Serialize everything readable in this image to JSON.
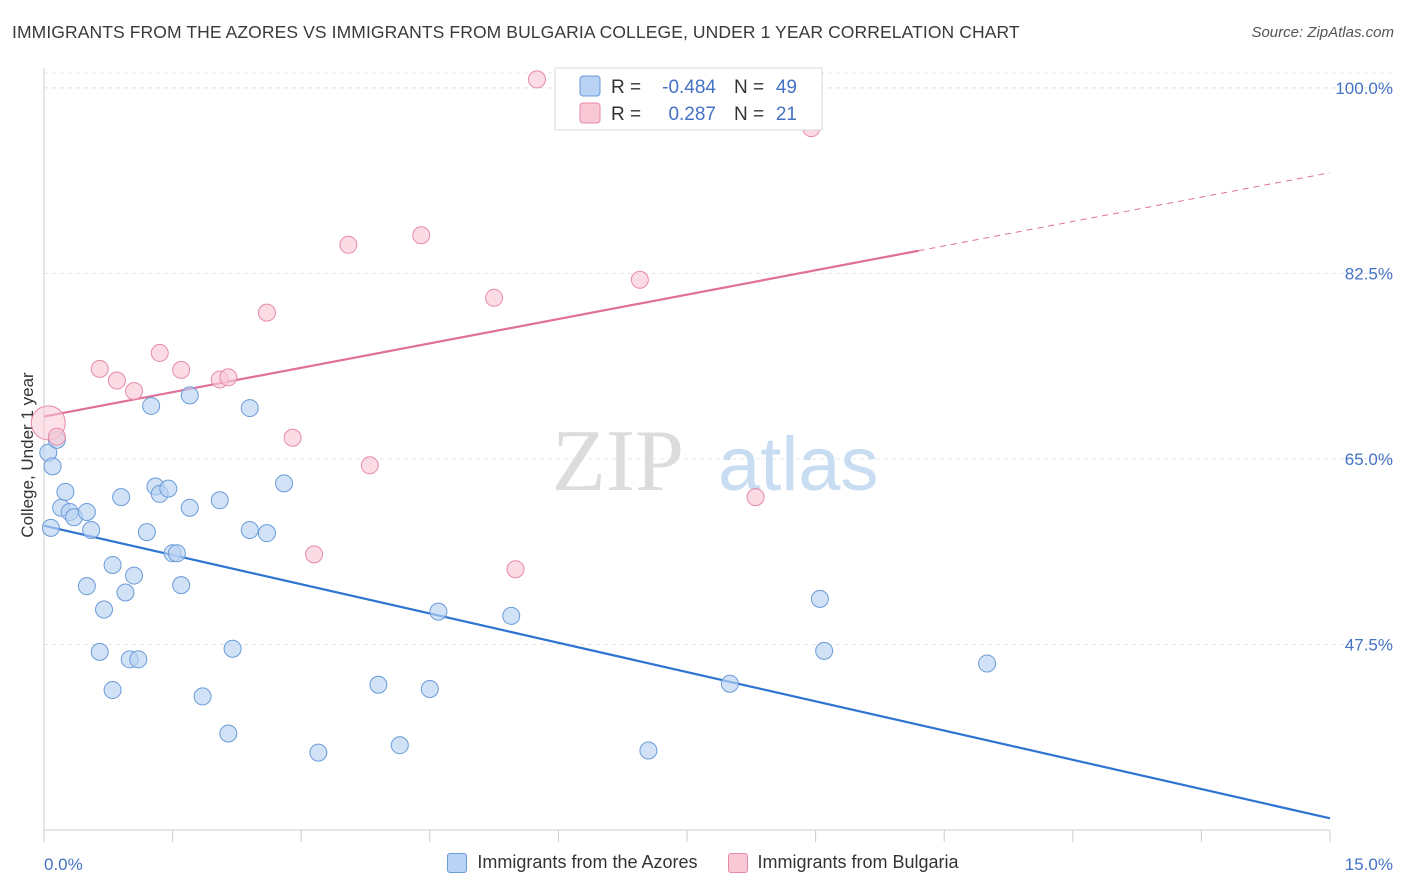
{
  "header": {
    "title": "IMMIGRANTS FROM THE AZORES VS IMMIGRANTS FROM BULGARIA COLLEGE, UNDER 1 YEAR CORRELATION CHART",
    "source": "Source: ZipAtlas.com"
  },
  "watermark": {
    "zip": "ZIP",
    "atlas": "atlas"
  },
  "stats": {
    "r_label": "R =",
    "n_label": "N =",
    "azores": {
      "r": "-0.484",
      "n": "49"
    },
    "bulgaria": {
      "r": "0.287",
      "n": "21"
    }
  },
  "colors": {
    "azores_fill": "#b8d3f3",
    "azores_stroke": "#6a9bd8",
    "azores_line": "#2e74d2",
    "bulgaria_fill": "#f9c8d6",
    "bulgaria_stroke": "#e68aa6",
    "bulgaria_line": "#e0709a",
    "axis_text": "#4472c4"
  },
  "chart_data": {
    "type": "scatter",
    "title": "IMMIGRANTS FROM THE AZORES VS IMMIGRANTS FROM BULGARIA COLLEGE, UNDER 1 YEAR CORRELATION CHART",
    "xlabel": "",
    "ylabel": "College, Under 1 year",
    "xlim": [
      0,
      15
    ],
    "ylim": [
      30,
      101.5
    ],
    "x_tick_labels": [
      "0.0%",
      "15.0%"
    ],
    "y_ticks": [
      47.5,
      65.0,
      82.5,
      100.0
    ],
    "y_tick_labels": [
      "47.5%",
      "65.0%",
      "82.5%",
      "100.0%"
    ],
    "grid": true,
    "legend_position": "bottom-center",
    "series": [
      {
        "name": "Immigrants from the Azores",
        "r": -0.484,
        "n": 49,
        "trend": {
          "x": [
            0,
            15
          ],
          "y": [
            58.7,
            31.1
          ],
          "solid_to": 15
        },
        "points": [
          [
            0.05,
            65.6
          ],
          [
            0.1,
            64.3
          ],
          [
            0.15,
            66.8
          ],
          [
            0.2,
            60.4
          ],
          [
            0.25,
            61.9
          ],
          [
            0.3,
            60.0
          ],
          [
            0.35,
            59.5
          ],
          [
            0.5,
            60.0
          ],
          [
            0.55,
            58.3
          ],
          [
            0.5,
            53.0
          ],
          [
            0.7,
            50.8
          ],
          [
            0.65,
            46.8
          ],
          [
            0.8,
            55.0
          ],
          [
            0.9,
            61.4
          ],
          [
            0.95,
            52.4
          ],
          [
            1.0,
            46.1
          ],
          [
            1.1,
            46.1
          ],
          [
            1.05,
            54.0
          ],
          [
            1.2,
            58.1
          ],
          [
            1.25,
            70.0
          ],
          [
            1.3,
            62.4
          ],
          [
            1.35,
            61.7
          ],
          [
            1.45,
            62.2
          ],
          [
            1.5,
            56.1
          ],
          [
            1.55,
            56.1
          ],
          [
            1.6,
            53.1
          ],
          [
            1.7,
            60.4
          ],
          [
            1.7,
            71.0
          ],
          [
            0.8,
            43.2
          ],
          [
            1.85,
            42.6
          ],
          [
            2.05,
            61.1
          ],
          [
            2.15,
            39.1
          ],
          [
            2.2,
            47.1
          ],
          [
            2.4,
            58.3
          ],
          [
            2.4,
            69.8
          ],
          [
            2.6,
            58.0
          ],
          [
            2.8,
            62.7
          ],
          [
            3.2,
            37.3
          ],
          [
            3.9,
            43.7
          ],
          [
            4.15,
            38.0
          ],
          [
            4.5,
            43.3
          ],
          [
            4.6,
            50.6
          ],
          [
            5.45,
            50.2
          ],
          [
            7.05,
            37.5
          ],
          [
            8.0,
            43.8
          ],
          [
            9.05,
            51.8
          ],
          [
            9.1,
            46.9
          ],
          [
            11.0,
            45.7
          ],
          [
            0.08,
            58.5
          ]
        ]
      },
      {
        "name": "Immigrants from Bulgaria",
        "r": 0.287,
        "n": 21,
        "trend": {
          "x": [
            0,
            15
          ],
          "y": [
            69.0,
            92.0
          ],
          "solid_to": 10.2
        },
        "points": [
          [
            0.05,
            68.4
          ],
          [
            0.15,
            67.1
          ],
          [
            0.65,
            73.5
          ],
          [
            0.85,
            72.4
          ],
          [
            1.05,
            71.4
          ],
          [
            1.35,
            75.0
          ],
          [
            1.6,
            73.4
          ],
          [
            2.05,
            72.5
          ],
          [
            2.15,
            72.7
          ],
          [
            2.6,
            78.8
          ],
          [
            2.9,
            67.0
          ],
          [
            3.15,
            56.0
          ],
          [
            3.55,
            85.2
          ],
          [
            3.8,
            64.4
          ],
          [
            4.4,
            86.1
          ],
          [
            5.25,
            80.2
          ],
          [
            5.5,
            54.6
          ],
          [
            5.75,
            100.8
          ],
          [
            6.95,
            81.9
          ],
          [
            8.3,
            61.4
          ],
          [
            8.95,
            96.2
          ]
        ]
      }
    ]
  }
}
